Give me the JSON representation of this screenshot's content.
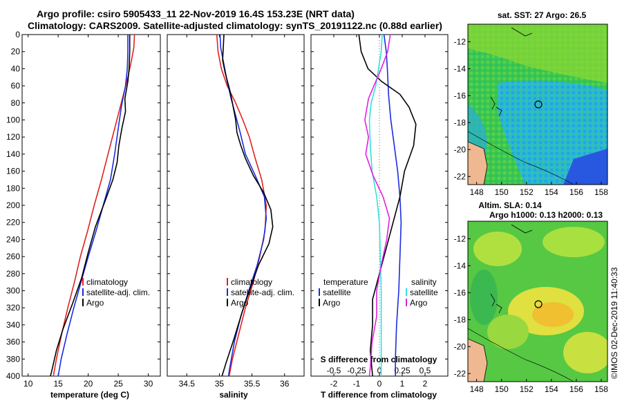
{
  "header": {
    "title_line1": "Argo profile: csiro 5905433_11 22-Nov-2019 16.4S 153.23E (NRT data)",
    "title_line2": "Climatology: CARS2009. Satellite-adjusted climatology: synTS_20191122.nc (0.88d earlier)"
  },
  "colors": {
    "climatology": "#e02020",
    "satellite": "#1a2adf",
    "argo": "#000000",
    "salinity_satellite": "#30e0e0",
    "salinity_argo": "#e020e0"
  },
  "depth_axis": {
    "ticks": [
      0,
      20,
      40,
      60,
      80,
      100,
      120,
      140,
      160,
      180,
      200,
      220,
      240,
      260,
      280,
      300,
      320,
      340,
      360,
      380,
      400
    ],
    "range": [
      0,
      400
    ]
  },
  "chart_data": [
    {
      "type": "line",
      "id": "temperature",
      "xlabel": "temperature (deg C)",
      "ylabel": "depth",
      "xlim": [
        9,
        32
      ],
      "ylim": [
        400,
        0
      ],
      "xticks": [
        10,
        15,
        20,
        25,
        30
      ],
      "legend": [
        "climatology",
        "satellite-adj. clim.",
        "Argo"
      ],
      "series": [
        {
          "name": "climatology",
          "color": "#e02020",
          "points": [
            [
              27.7,
              0
            ],
            [
              27.6,
              15
            ],
            [
              27.2,
              30
            ],
            [
              26.6,
              50
            ],
            [
              25.5,
              80
            ],
            [
              24.4,
              110
            ],
            [
              23.3,
              140
            ],
            [
              22.2,
              170
            ],
            [
              21.0,
              200
            ],
            [
              19.9,
              230
            ],
            [
              18.7,
              260
            ],
            [
              17.7,
              290
            ],
            [
              16.6,
              320
            ],
            [
              15.6,
              350
            ],
            [
              14.7,
              380
            ],
            [
              14.2,
              400
            ]
          ]
        },
        {
          "name": "satellite-adj. clim.",
          "color": "#1a2adf",
          "points": [
            [
              26.6,
              0
            ],
            [
              26.6,
              20
            ],
            [
              26.5,
              40
            ],
            [
              26.2,
              60
            ],
            [
              25.5,
              85
            ],
            [
              25.0,
              110
            ],
            [
              24.4,
              140
            ],
            [
              23.7,
              170
            ],
            [
              22.5,
              200
            ],
            [
              21.3,
              230
            ],
            [
              20.0,
              260
            ],
            [
              18.8,
              290
            ],
            [
              17.6,
              320
            ],
            [
              16.5,
              350
            ],
            [
              15.5,
              380
            ],
            [
              15.0,
              400
            ]
          ]
        },
        {
          "name": "Argo",
          "color": "#000000",
          "points": [
            [
              26.9,
              0
            ],
            [
              26.9,
              20
            ],
            [
              26.8,
              40
            ],
            [
              26.6,
              55
            ],
            [
              26.1,
              75
            ],
            [
              26.2,
              90
            ],
            [
              25.6,
              110
            ],
            [
              25.1,
              130
            ],
            [
              24.8,
              150
            ],
            [
              24.1,
              170
            ],
            [
              22.8,
              195
            ],
            [
              21.2,
              225
            ],
            [
              20.0,
              255
            ],
            [
              18.9,
              285
            ],
            [
              17.4,
              315
            ],
            [
              15.8,
              345
            ],
            [
              14.7,
              370
            ],
            [
              13.9,
              395
            ],
            [
              13.7,
              400
            ]
          ]
        }
      ]
    },
    {
      "type": "line",
      "id": "salinity",
      "xlabel": "salinity",
      "ylabel": "depth",
      "xlim": [
        34.2,
        36.3
      ],
      "ylim": [
        400,
        0
      ],
      "xticks": [
        34.5,
        35,
        35.5,
        36
      ],
      "legend": [
        "climatology",
        "satellite-adj. clim.",
        "Argo"
      ],
      "series": [
        {
          "name": "climatology",
          "color": "#e02020",
          "points": [
            [
              34.96,
              0
            ],
            [
              34.98,
              20
            ],
            [
              35.03,
              40
            ],
            [
              35.12,
              60
            ],
            [
              35.25,
              80
            ],
            [
              35.36,
              100
            ],
            [
              35.46,
              120
            ],
            [
              35.55,
              145
            ],
            [
              35.65,
              170
            ],
            [
              35.72,
              200
            ],
            [
              35.7,
              230
            ],
            [
              35.62,
              260
            ],
            [
              35.52,
              290
            ],
            [
              35.4,
              320
            ],
            [
              35.3,
              350
            ],
            [
              35.2,
              380
            ],
            [
              35.15,
              400
            ]
          ]
        },
        {
          "name": "satellite-adj. clim.",
          "color": "#1a2adf",
          "points": [
            [
              35.01,
              0
            ],
            [
              35.02,
              15
            ],
            [
              35.07,
              35
            ],
            [
              35.12,
              55
            ],
            [
              35.18,
              75
            ],
            [
              35.25,
              95
            ],
            [
              35.32,
              115
            ],
            [
              35.4,
              140
            ],
            [
              35.55,
              165
            ],
            [
              35.69,
              190
            ],
            [
              35.72,
              215
            ],
            [
              35.68,
              240
            ],
            [
              35.58,
              270
            ],
            [
              35.45,
              300
            ],
            [
              35.33,
              330
            ],
            [
              35.23,
              360
            ],
            [
              35.16,
              390
            ],
            [
              35.14,
              400
            ]
          ]
        },
        {
          "name": "Argo",
          "color": "#000000",
          "points": [
            [
              35.07,
              0
            ],
            [
              35.06,
              15
            ],
            [
              35.05,
              30
            ],
            [
              35.09,
              45
            ],
            [
              35.16,
              65
            ],
            [
              35.2,
              80
            ],
            [
              35.25,
              100
            ],
            [
              35.27,
              115
            ],
            [
              35.33,
              130
            ],
            [
              35.4,
              145
            ],
            [
              35.52,
              165
            ],
            [
              35.68,
              185
            ],
            [
              35.79,
              205
            ],
            [
              35.82,
              225
            ],
            [
              35.76,
              245
            ],
            [
              35.6,
              270
            ],
            [
              35.46,
              300
            ],
            [
              35.35,
              325
            ],
            [
              35.23,
              355
            ],
            [
              35.1,
              385
            ],
            [
              35.04,
              400
            ]
          ]
        }
      ]
    },
    {
      "type": "line",
      "id": "differences",
      "xlabel": "T difference from climatology",
      "xlabel_top": "S difference from climatology",
      "xlim": [
        -3,
        3
      ],
      "ylim": [
        400,
        0
      ],
      "xticks": [
        -2,
        -1,
        0,
        1,
        2
      ],
      "xticks_top": [
        -0.5,
        -0.25,
        0,
        0.25,
        0.5
      ],
      "xlim_top": [
        -0.75,
        0.75
      ],
      "legend_left_title": "temperature",
      "legend_left": [
        "satellite",
        "Argo"
      ],
      "legend_right_title": "salinity",
      "legend_right": [
        "satellite",
        "Argo"
      ],
      "series": [
        {
          "name": "temperature satellite",
          "color": "#1a2adf",
          "axis": "T",
          "points": [
            [
              0.2,
              0
            ],
            [
              0.3,
              20
            ],
            [
              0.35,
              40
            ],
            [
              0.4,
              70
            ],
            [
              0.5,
              100
            ],
            [
              0.65,
              130
            ],
            [
              0.8,
              160
            ],
            [
              0.9,
              190
            ],
            [
              0.95,
              220
            ],
            [
              0.9,
              260
            ],
            [
              0.85,
              300
            ],
            [
              0.75,
              340
            ],
            [
              0.7,
              380
            ],
            [
              0.7,
              400
            ]
          ]
        },
        {
          "name": "temperature Argo",
          "color": "#000000",
          "axis": "T",
          "points": [
            [
              -0.9,
              0
            ],
            [
              -0.8,
              20
            ],
            [
              -0.5,
              40
            ],
            [
              0.1,
              55
            ],
            [
              0.9,
              70
            ],
            [
              1.3,
              85
            ],
            [
              1.6,
              105
            ],
            [
              1.5,
              130
            ],
            [
              1.1,
              160
            ],
            [
              0.9,
              190
            ],
            [
              0.6,
              220
            ],
            [
              0.3,
              250
            ],
            [
              0.0,
              280
            ],
            [
              -0.3,
              310
            ],
            [
              -0.3,
              340
            ],
            [
              -0.4,
              370
            ],
            [
              -0.3,
              400
            ]
          ]
        },
        {
          "name": "salinity satellite",
          "color": "#30e0e0",
          "axis": "S",
          "points": [
            [
              0.03,
              0
            ],
            [
              0.02,
              20
            ],
            [
              -0.01,
              40
            ],
            [
              -0.04,
              60
            ],
            [
              -0.09,
              80
            ],
            [
              -0.11,
              100
            ],
            [
              -0.1,
              130
            ],
            [
              -0.08,
              160
            ],
            [
              -0.03,
              190
            ],
            [
              0.0,
              220
            ],
            [
              0.01,
              260
            ],
            [
              0.02,
              300
            ],
            [
              0.02,
              340
            ],
            [
              0.02,
              380
            ],
            [
              0.02,
              400
            ]
          ]
        },
        {
          "name": "salinity Argo",
          "color": "#e020e0",
          "axis": "S",
          "points": [
            [
              0.12,
              0
            ],
            [
              0.09,
              20
            ],
            [
              0.02,
              40
            ],
            [
              -0.06,
              60
            ],
            [
              -0.12,
              75
            ],
            [
              -0.16,
              100
            ],
            [
              -0.12,
              120
            ],
            [
              -0.15,
              140
            ],
            [
              -0.07,
              165
            ],
            [
              0.04,
              190
            ],
            [
              0.11,
              215
            ],
            [
              0.08,
              240
            ],
            [
              0.02,
              270
            ],
            [
              -0.03,
              300
            ],
            [
              -0.03,
              330
            ],
            [
              -0.08,
              360
            ],
            [
              -0.1,
              390
            ],
            [
              -0.11,
              400
            ]
          ]
        }
      ]
    }
  ],
  "map_sst": {
    "title": "sat. SST: 27 Argo: 26.5",
    "lon_ticks": [
      148,
      150,
      152,
      154,
      156,
      158
    ],
    "lat_ticks": [
      -12,
      -14,
      -16,
      -18,
      -20,
      -22
    ]
  },
  "map_sla": {
    "title_line1": "Altim. SLA: 0.14",
    "title_line2": "Argo h1000: 0.13 h2000: 0.13",
    "lon_ticks": [
      148,
      150,
      152,
      154,
      156,
      158
    ],
    "lat_ticks": [
      -12,
      -14,
      -16,
      -18,
      -20,
      -22
    ]
  },
  "credit": "©IMOS 02-Dec-2019 11:40:33"
}
